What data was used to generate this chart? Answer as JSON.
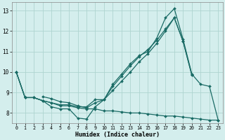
{
  "xlabel": "Humidex (Indice chaleur)",
  "background_color": "#d4eeed",
  "grid_color": "#aed4d0",
  "line_color": "#1a6b65",
  "xlim": [
    -0.5,
    23.5
  ],
  "ylim": [
    7.5,
    13.4
  ],
  "xticks": [
    0,
    1,
    2,
    3,
    4,
    5,
    6,
    7,
    8,
    9,
    10,
    11,
    12,
    13,
    14,
    15,
    16,
    17,
    18,
    19,
    20,
    21,
    22,
    23
  ],
  "yticks": [
    8,
    9,
    10,
    11,
    12,
    13
  ],
  "lines": [
    {
      "x": [
        0,
        1,
        2,
        3,
        4,
        5,
        6,
        7,
        8,
        9,
        10,
        11,
        12,
        13,
        14,
        15,
        16,
        17,
        18,
        19,
        20,
        21,
        22,
        23
      ],
      "y": [
        10.0,
        8.75,
        8.75,
        8.6,
        8.3,
        8.2,
        8.2,
        7.75,
        7.7,
        8.3,
        8.65,
        9.4,
        9.9,
        10.4,
        10.8,
        11.0,
        11.65,
        12.65,
        13.1,
        11.6,
        9.9,
        9.4,
        9.3,
        7.65
      ]
    },
    {
      "x": [
        0,
        1,
        2,
        3,
        4,
        5,
        6,
        7,
        8,
        9,
        10,
        11,
        12,
        13,
        14,
        15,
        16,
        17,
        18,
        19,
        20
      ],
      "y": [
        10.0,
        8.75,
        8.75,
        8.6,
        8.5,
        8.4,
        8.4,
        8.3,
        8.3,
        8.65,
        8.65,
        9.3,
        9.8,
        10.3,
        10.75,
        11.1,
        11.55,
        12.1,
        12.65,
        11.5,
        9.85
      ]
    },
    {
      "x": [
        3,
        4,
        5,
        6,
        7,
        8,
        9,
        10,
        11,
        12,
        13,
        14,
        15,
        16,
        17,
        18,
        19,
        20
      ],
      "y": [
        8.8,
        8.7,
        8.55,
        8.5,
        8.35,
        8.25,
        8.5,
        8.65,
        9.1,
        9.55,
        10.0,
        10.5,
        10.9,
        11.4,
        12.0,
        12.65,
        11.5,
        9.85
      ]
    },
    {
      "x": [
        0,
        1,
        2,
        3,
        4,
        5,
        6,
        7,
        8,
        9,
        10,
        11,
        12,
        13,
        14,
        15,
        16,
        17,
        18,
        19,
        20,
        21,
        22,
        23
      ],
      "y": [
        10.0,
        8.75,
        8.75,
        8.6,
        8.5,
        8.35,
        8.35,
        8.25,
        8.2,
        8.2,
        8.1,
        8.1,
        8.05,
        8.0,
        8.0,
        7.95,
        7.9,
        7.85,
        7.85,
        7.8,
        7.75,
        7.7,
        7.65,
        7.65
      ]
    }
  ]
}
